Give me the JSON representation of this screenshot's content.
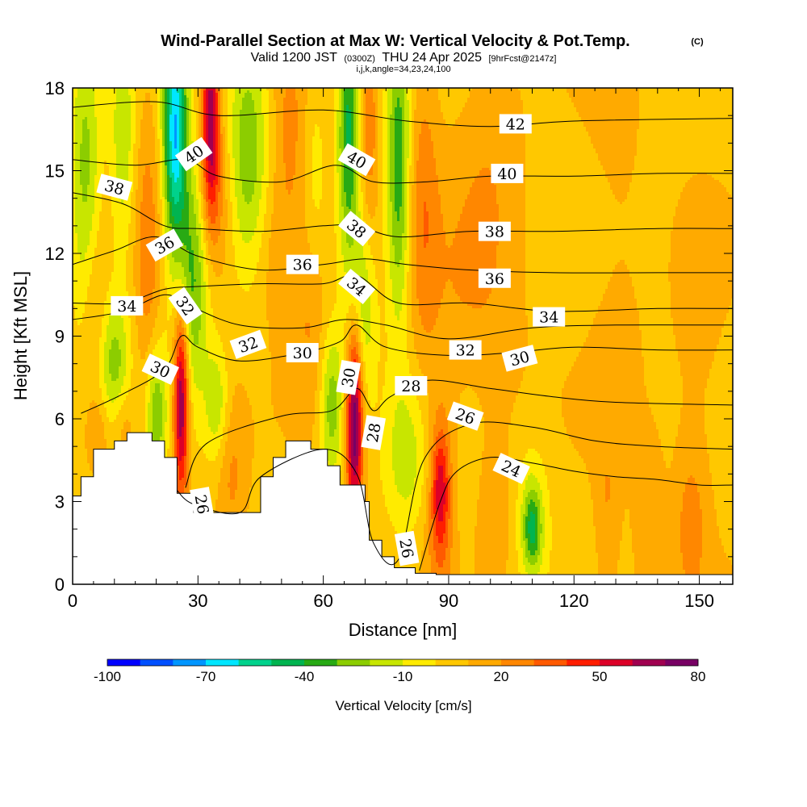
{
  "title": "Wind-Parallel Section at Max W: Vertical Velocity & Pot.Temp.",
  "copyright": "(C)",
  "subtitle": {
    "valid_prefix": "Valid 1200 JST",
    "utc": "(0300Z)",
    "date": "THU 24 Apr 2025",
    "forecast": "[9hrFcst@2147z]"
  },
  "indices": "i,j,k,angle=34,23,24,100",
  "chart_data": {
    "type": "heatmap",
    "xlabel": "Distance [nm]",
    "ylabel": "Height [Kft MSL]",
    "xlim": [
      0,
      158
    ],
    "ylim": [
      0,
      18
    ],
    "x_ticks": [
      0,
      30,
      60,
      90,
      120,
      150
    ],
    "y_ticks": [
      0,
      3,
      6,
      9,
      12,
      15,
      18
    ],
    "colorbar": {
      "label": "Vertical Velocity [cm/s]",
      "tick_labels": [
        -100,
        -70,
        -40,
        -10,
        20,
        50,
        80
      ],
      "colors": [
        "#0000ff",
        "#0050ff",
        "#0096ff",
        "#00e6ff",
        "#00d28c",
        "#00b450",
        "#28aa14",
        "#8ccd00",
        "#c8e600",
        "#ffeb00",
        "#ffc800",
        "#ffaa00",
        "#ff8700",
        "#ff5a00",
        "#ff1e00",
        "#dc0028",
        "#a00050",
        "#780064",
        "#500082"
      ]
    },
    "terrain": [
      [
        0,
        3.2
      ],
      [
        2,
        3.2
      ],
      [
        2,
        3.9
      ],
      [
        5,
        3.9
      ],
      [
        5,
        4.9
      ],
      [
        10,
        4.9
      ],
      [
        10,
        5.2
      ],
      [
        13,
        5.2
      ],
      [
        13,
        5.5
      ],
      [
        19,
        5.5
      ],
      [
        19,
        5.2
      ],
      [
        22,
        5.2
      ],
      [
        22,
        4.6
      ],
      [
        25,
        4.6
      ],
      [
        25,
        3.3
      ],
      [
        29,
        3.3
      ],
      [
        29,
        2.6
      ],
      [
        45,
        2.6
      ],
      [
        45,
        3.9
      ],
      [
        48,
        3.9
      ],
      [
        48,
        4.6
      ],
      [
        51,
        4.6
      ],
      [
        51,
        5.2
      ],
      [
        57,
        5.2
      ],
      [
        57,
        4.9
      ],
      [
        61,
        4.9
      ],
      [
        61,
        4.3
      ],
      [
        64,
        4.3
      ],
      [
        64,
        3.6
      ],
      [
        70,
        3.6
      ],
      [
        70,
        3.0
      ],
      [
        71,
        3.0
      ],
      [
        71,
        1.6
      ],
      [
        74,
        1.6
      ],
      [
        74,
        1.0
      ],
      [
        77,
        1.0
      ],
      [
        77,
        0.6
      ],
      [
        82,
        0.6
      ],
      [
        82,
        0.4
      ],
      [
        87,
        0.4
      ],
      [
        87,
        0.35
      ],
      [
        158,
        0.35
      ]
    ],
    "theta_contours": [
      {
        "level": 24,
        "points": [
          [
            83,
            0.5
          ],
          [
            88,
            3.0
          ],
          [
            92,
            4.1
          ],
          [
            100,
            4.6
          ],
          [
            110,
            4.4
          ],
          [
            120,
            4.1
          ],
          [
            130,
            3.9
          ],
          [
            140,
            3.8
          ],
          [
            150,
            3.6
          ],
          [
            158,
            3.6
          ]
        ]
      },
      {
        "level": 26,
        "points": [
          [
            25,
            3.4
          ],
          [
            29,
            2.9
          ],
          [
            40,
            2.6
          ],
          [
            45,
            3.9
          ],
          [
            60,
            4.9
          ],
          [
            68,
            4.0
          ],
          [
            72,
            1.5
          ],
          [
            78,
            0.9
          ],
          [
            84,
            4.5
          ],
          [
            95,
            5.8
          ],
          [
            110,
            5.7
          ],
          [
            125,
            5.2
          ],
          [
            140,
            5.0
          ],
          [
            158,
            4.9
          ]
        ]
      },
      {
        "level": 28,
        "points": [
          [
            27,
            3.5
          ],
          [
            32,
            5.1
          ],
          [
            50,
            6.1
          ],
          [
            62,
            6.3
          ],
          [
            68,
            7.1
          ],
          [
            72,
            6.3
          ],
          [
            76,
            6.8
          ],
          [
            85,
            7.4
          ],
          [
            100,
            7.1
          ],
          [
            115,
            6.8
          ],
          [
            130,
            6.6
          ],
          [
            158,
            6.5
          ]
        ]
      },
      {
        "level": 30,
        "points": [
          [
            2,
            6.2
          ],
          [
            12,
            6.9
          ],
          [
            22,
            7.8
          ],
          [
            26,
            9.0
          ],
          [
            30,
            8.6
          ],
          [
            40,
            8.1
          ],
          [
            55,
            8.4
          ],
          [
            64,
            8.8
          ],
          [
            68,
            9.4
          ],
          [
            75,
            8.6
          ],
          [
            90,
            8.3
          ],
          [
            105,
            8.4
          ],
          [
            120,
            8.6
          ],
          [
            140,
            8.5
          ],
          [
            158,
            8.5
          ]
        ]
      },
      {
        "level": 32,
        "points": [
          [
            0,
            9.6
          ],
          [
            12,
            9.9
          ],
          [
            22,
            10.5
          ],
          [
            28,
            10.1
          ],
          [
            40,
            9.4
          ],
          [
            55,
            9.3
          ],
          [
            65,
            9.6
          ],
          [
            75,
            9.4
          ],
          [
            90,
            8.9
          ],
          [
            110,
            9.3
          ],
          [
            130,
            9.4
          ],
          [
            158,
            9.4
          ]
        ]
      },
      {
        "level": 34,
        "points": [
          [
            0,
            10.2
          ],
          [
            12,
            10.2
          ],
          [
            22,
            10.7
          ],
          [
            30,
            10.8
          ],
          [
            45,
            10.9
          ],
          [
            60,
            10.9
          ],
          [
            68,
            11.2
          ],
          [
            78,
            10.2
          ],
          [
            95,
            10.2
          ],
          [
            115,
            9.9
          ],
          [
            140,
            10.0
          ],
          [
            158,
            10.0
          ]
        ]
      },
      {
        "level": 36,
        "points": [
          [
            0,
            11.6
          ],
          [
            10,
            12.1
          ],
          [
            20,
            12.6
          ],
          [
            30,
            11.9
          ],
          [
            45,
            11.4
          ],
          [
            60,
            11.6
          ],
          [
            70,
            11.8
          ],
          [
            80,
            11.6
          ],
          [
            95,
            11.4
          ],
          [
            115,
            11.3
          ],
          [
            140,
            11.3
          ],
          [
            158,
            11.3
          ]
        ]
      },
      {
        "level": 38,
        "points": [
          [
            0,
            14.2
          ],
          [
            12,
            13.8
          ],
          [
            22,
            13.0
          ],
          [
            30,
            12.9
          ],
          [
            45,
            12.8
          ],
          [
            60,
            13.0
          ],
          [
            68,
            13.0
          ],
          [
            78,
            12.6
          ],
          [
            95,
            12.8
          ],
          [
            115,
            12.8
          ],
          [
            140,
            12.9
          ],
          [
            158,
            12.9
          ]
        ]
      },
      {
        "level": 40,
        "points": [
          [
            0,
            15.4
          ],
          [
            15,
            15.2
          ],
          [
            27,
            15.4
          ],
          [
            35,
            14.8
          ],
          [
            50,
            14.6
          ],
          [
            63,
            15.2
          ],
          [
            72,
            14.6
          ],
          [
            85,
            14.6
          ],
          [
            100,
            14.8
          ],
          [
            120,
            14.8
          ],
          [
            140,
            14.9
          ],
          [
            158,
            14.9
          ]
        ]
      },
      {
        "level": 42,
        "points": [
          [
            0,
            17.3
          ],
          [
            20,
            17.5
          ],
          [
            35,
            17.0
          ],
          [
            60,
            17.2
          ],
          [
            80,
            16.8
          ],
          [
            100,
            16.6
          ],
          [
            120,
            16.8
          ],
          [
            158,
            16.9
          ]
        ]
      }
    ],
    "theta_labels": [
      {
        "level": 24,
        "x": 105,
        "y": 4.2,
        "angle": 25
      },
      {
        "level": 26,
        "x": 31,
        "y": 2.9,
        "angle": 80
      },
      {
        "level": 26,
        "x": 80,
        "y": 1.3,
        "angle": 80
      },
      {
        "level": 26,
        "x": 94,
        "y": 6.1,
        "angle": 20
      },
      {
        "level": 28,
        "x": 72,
        "y": 5.5,
        "angle": -80
      },
      {
        "level": 28,
        "x": 81,
        "y": 7.2,
        "angle": 0
      },
      {
        "level": 30,
        "x": 21,
        "y": 7.8,
        "angle": 25
      },
      {
        "level": 30,
        "x": 55,
        "y": 8.4,
        "angle": 0
      },
      {
        "level": 30,
        "x": 66,
        "y": 7.5,
        "angle": -80
      },
      {
        "level": 30,
        "x": 107,
        "y": 8.2,
        "angle": -15
      },
      {
        "level": 32,
        "x": 27,
        "y": 10.1,
        "angle": 55
      },
      {
        "level": 32,
        "x": 42,
        "y": 8.7,
        "angle": -20
      },
      {
        "level": 32,
        "x": 94,
        "y": 8.5,
        "angle": 0
      },
      {
        "level": 34,
        "x": 13,
        "y": 10.1,
        "angle": 0
      },
      {
        "level": 34,
        "x": 68,
        "y": 10.8,
        "angle": 40
      },
      {
        "level": 34,
        "x": 114,
        "y": 9.7,
        "angle": 0
      },
      {
        "level": 36,
        "x": 22,
        "y": 12.3,
        "angle": -30
      },
      {
        "level": 36,
        "x": 55,
        "y": 11.6,
        "angle": 0
      },
      {
        "level": 36,
        "x": 101,
        "y": 11.1,
        "angle": 0
      },
      {
        "level": 38,
        "x": 10,
        "y": 14.4,
        "angle": 15
      },
      {
        "level": 38,
        "x": 68,
        "y": 12.9,
        "angle": 40
      },
      {
        "level": 38,
        "x": 101,
        "y": 12.8,
        "angle": 0
      },
      {
        "level": 40,
        "x": 29,
        "y": 15.6,
        "angle": -35
      },
      {
        "level": 40,
        "x": 68,
        "y": 15.4,
        "angle": 30
      },
      {
        "level": 40,
        "x": 104,
        "y": 14.9,
        "angle": 0
      },
      {
        "level": 42,
        "x": 106,
        "y": 16.7,
        "angle": 0
      }
    ],
    "w_features": [
      {
        "x": 26,
        "y": 6.8,
        "sx": 1.3,
        "sy": 2.6,
        "w": 70
      },
      {
        "x": 28.5,
        "y": 11.0,
        "sx": 2.8,
        "sy": 3.0,
        "w": -40
      },
      {
        "x": 24.5,
        "y": 16.5,
        "sx": 2.0,
        "sy": 3.0,
        "w": -75
      },
      {
        "x": 33,
        "y": 16.8,
        "sx": 1.5,
        "sy": 2.5,
        "w": 60
      },
      {
        "x": 42,
        "y": 16.0,
        "sx": 3.5,
        "sy": 3.0,
        "w": -35
      },
      {
        "x": 35,
        "y": 14.0,
        "sx": 2.5,
        "sy": 2.0,
        "w": 15
      },
      {
        "x": 38,
        "y": 4.0,
        "sx": 2.5,
        "sy": 2.0,
        "w": 15
      },
      {
        "x": 34.5,
        "y": 6.5,
        "sx": 2.0,
        "sy": 1.5,
        "w": -25
      },
      {
        "x": 3,
        "y": 15.0,
        "sx": 2.5,
        "sy": 4.0,
        "w": -30
      },
      {
        "x": 12,
        "y": 16.0,
        "sx": 2.0,
        "sy": 3.0,
        "w": -25
      },
      {
        "x": 18,
        "y": 12.0,
        "sx": 2.0,
        "sy": 4.0,
        "w": 18
      },
      {
        "x": 5,
        "y": 10.0,
        "sx": 2.0,
        "sy": 2.0,
        "w": 12
      },
      {
        "x": 10,
        "y": 8.0,
        "sx": 2.5,
        "sy": 1.8,
        "w": -30
      },
      {
        "x": 20,
        "y": 6.2,
        "sx": 1.8,
        "sy": 1.8,
        "w": -35
      },
      {
        "x": 6,
        "y": 5.5,
        "sx": 2.0,
        "sy": 1.0,
        "w": 15
      },
      {
        "x": 12,
        "y": 5.8,
        "sx": 2.0,
        "sy": 1.0,
        "w": 15
      },
      {
        "x": 67.5,
        "y": 6.0,
        "sx": 1.4,
        "sy": 2.6,
        "w": 75
      },
      {
        "x": 69,
        "y": 10.0,
        "sx": 2.5,
        "sy": 2.5,
        "w": -30
      },
      {
        "x": 66,
        "y": 16.5,
        "sx": 1.8,
        "sy": 3.0,
        "w": -50
      },
      {
        "x": 71,
        "y": 16.5,
        "sx": 1.5,
        "sy": 3.0,
        "w": 20
      },
      {
        "x": 78,
        "y": 15.0,
        "sx": 2.0,
        "sy": 4.0,
        "w": -45
      },
      {
        "x": 84,
        "y": 14.0,
        "sx": 2.5,
        "sy": 4.0,
        "w": 18
      },
      {
        "x": 62,
        "y": 6.5,
        "sx": 2.0,
        "sy": 2.0,
        "w": -35
      },
      {
        "x": 57,
        "y": 10.0,
        "sx": 3.0,
        "sy": 2.5,
        "w": 15
      },
      {
        "x": 48,
        "y": 12.0,
        "sx": 3.0,
        "sy": 2.0,
        "w": 10
      },
      {
        "x": 52,
        "y": 16.0,
        "sx": 3.0,
        "sy": 3.0,
        "w": 15
      },
      {
        "x": 58,
        "y": 15.0,
        "sx": 2.0,
        "sy": 3.0,
        "w": -12
      },
      {
        "x": 80,
        "y": 4.5,
        "sx": 4.0,
        "sy": 2.0,
        "w": -22
      },
      {
        "x": 88,
        "y": 3.5,
        "sx": 1.5,
        "sy": 1.5,
        "w": 35
      },
      {
        "x": 88,
        "y": 2.5,
        "sx": 2.5,
        "sy": 3.0,
        "w": 18
      },
      {
        "x": 95,
        "y": 4.0,
        "sx": 3.0,
        "sy": 3.0,
        "w": -8
      },
      {
        "x": 100,
        "y": 2.0,
        "sx": 3.0,
        "sy": 2.0,
        "w": 12
      },
      {
        "x": 110,
        "y": 2.0,
        "sx": 1.5,
        "sy": 1.0,
        "w": -35
      },
      {
        "x": 110,
        "y": 2.5,
        "sx": 3.0,
        "sy": 2.0,
        "w": -18
      },
      {
        "x": 128,
        "y": 2.5,
        "sx": 2.0,
        "sy": 2.5,
        "w": 12
      },
      {
        "x": 138,
        "y": 2.0,
        "sx": 2.5,
        "sy": 2.0,
        "w": 12
      },
      {
        "x": 148,
        "y": 2.0,
        "sx": 2.5,
        "sy": 2.0,
        "w": 18
      },
      {
        "x": 95,
        "y": 10.0,
        "sx": 8.0,
        "sy": 4.0,
        "w": 12
      },
      {
        "x": 100,
        "y": 15.0,
        "sx": 5.0,
        "sy": 3.0,
        "w": 8
      },
      {
        "x": 130,
        "y": 12.0,
        "sx": 6.0,
        "sy": 6.0,
        "w": 5
      },
      {
        "x": 150,
        "y": 9.0,
        "sx": 5.0,
        "sy": 4.0,
        "w": 6
      }
    ]
  }
}
